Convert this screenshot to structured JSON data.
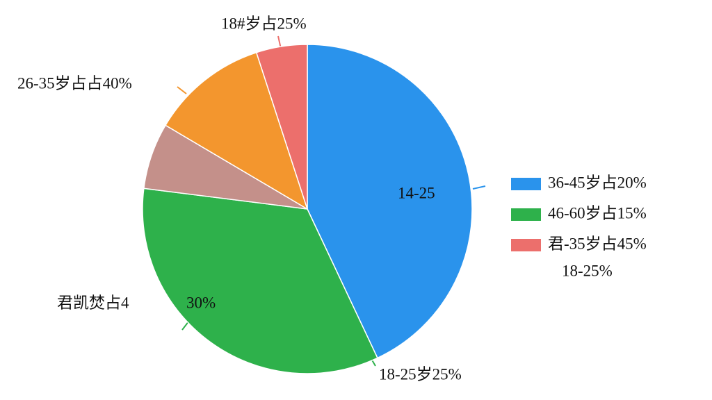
{
  "chart_data": {
    "type": "pie",
    "values": [
      43,
      34,
      6.5,
      11.5,
      5
    ],
    "colors": [
      "#2a93ec",
      "#2eb14b",
      "#c4908a",
      "#f3962e",
      "#ec6f6c"
    ],
    "legend": [
      {
        "label": "36-45岁占20%",
        "color": "#2a93ec"
      },
      {
        "label": "46-60岁占15%",
        "color": "#2eb14b"
      },
      {
        "label": "君-35岁占45%",
        "color": "#ec6f6c"
      }
    ],
    "legend_note": "18-25%",
    "annotations": [
      "18#岁占25%",
      "26-35岁占占40%",
      "14-25",
      "君凯焚占4",
      "30%",
      "18-25岁25%"
    ]
  }
}
